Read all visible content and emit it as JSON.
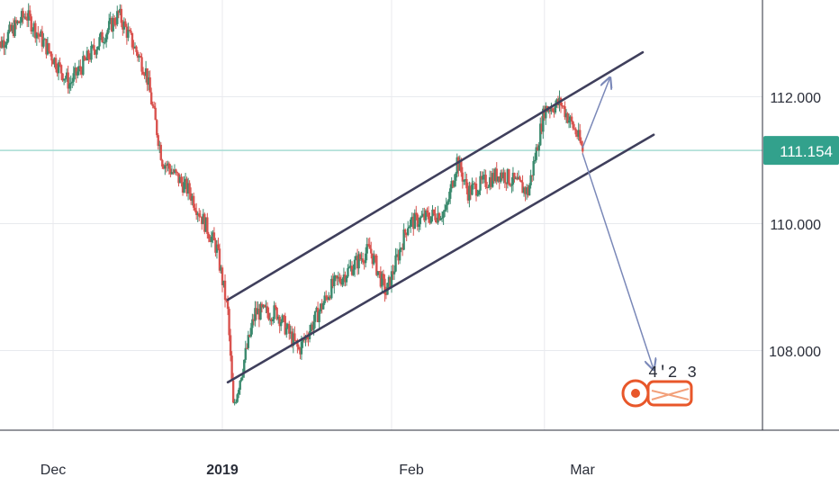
{
  "colors": {
    "up": "#3b8a6e",
    "down": "#d9534f",
    "channel": "#3f3f5c",
    "projection": "#7a88b8",
    "last_price_line": "#a6dcd3",
    "last_price_bg": "#32a18c",
    "grid": "#e8eaee",
    "axis": "#2a2e39"
  },
  "price_axis": {
    "ticks": [
      "112.000",
      "110.000",
      "108.000"
    ]
  },
  "time_axis": {
    "labels": [
      "Dec",
      "2019",
      "Feb",
      "Mar"
    ],
    "bold": "2019"
  },
  "last_price": "111.154",
  "watermark": {
    "text": "4'2 3",
    "icon": "logo-stamp-icon"
  },
  "chart_data": {
    "type": "candlestick",
    "y_ticks": [
      108,
      110,
      112
    ],
    "x_ticks": [
      "Dec",
      "2019",
      "Feb",
      "Mar"
    ],
    "last_price": 111.154,
    "price_path": [
      [
        "2018-11-20",
        112.7
      ],
      [
        "2018-11-26",
        113.3
      ],
      [
        "2018-12-04",
        112.2
      ],
      [
        "2018-12-13",
        113.3
      ],
      [
        "2018-12-18",
        112.4
      ],
      [
        "2018-12-21",
        111.0
      ],
      [
        "2018-12-26",
        110.5
      ],
      [
        "2018-12-31",
        109.6
      ],
      [
        "2019-01-02",
        108.6
      ],
      [
        "2019-01-03",
        107.1
      ],
      [
        "2019-01-07",
        108.6
      ],
      [
        "2019-01-11",
        108.6
      ],
      [
        "2019-01-15",
        108.0
      ],
      [
        "2019-01-21",
        109.0
      ],
      [
        "2019-01-28",
        109.6
      ],
      [
        "2019-01-31",
        108.9
      ],
      [
        "2019-02-04",
        110.0
      ],
      [
        "2019-02-11",
        110.2
      ],
      [
        "2019-02-13",
        111.0
      ],
      [
        "2019-02-15",
        110.5
      ],
      [
        "2019-02-21",
        110.8
      ],
      [
        "2019-02-26",
        110.5
      ],
      [
        "2019-03-01",
        111.8
      ],
      [
        "2019-03-04",
        111.9
      ],
      [
        "2019-03-07",
        111.4
      ],
      [
        "2019-03-08",
        111.154
      ]
    ],
    "drawings": {
      "channel_upper": [
        [
          "2019-01-02",
          108.8
        ],
        [
          "2019-03-19",
          112.7
        ]
      ],
      "channel_lower": [
        [
          "2019-01-02",
          107.5
        ],
        [
          "2019-03-21",
          111.4
        ]
      ],
      "projection_up": [
        [
          "2019-03-08",
          111.2
        ],
        [
          "2019-03-13",
          112.3
        ]
      ],
      "projection_down": [
        [
          "2019-03-08",
          111.1
        ],
        [
          "2019-03-21",
          107.7
        ]
      ]
    }
  }
}
